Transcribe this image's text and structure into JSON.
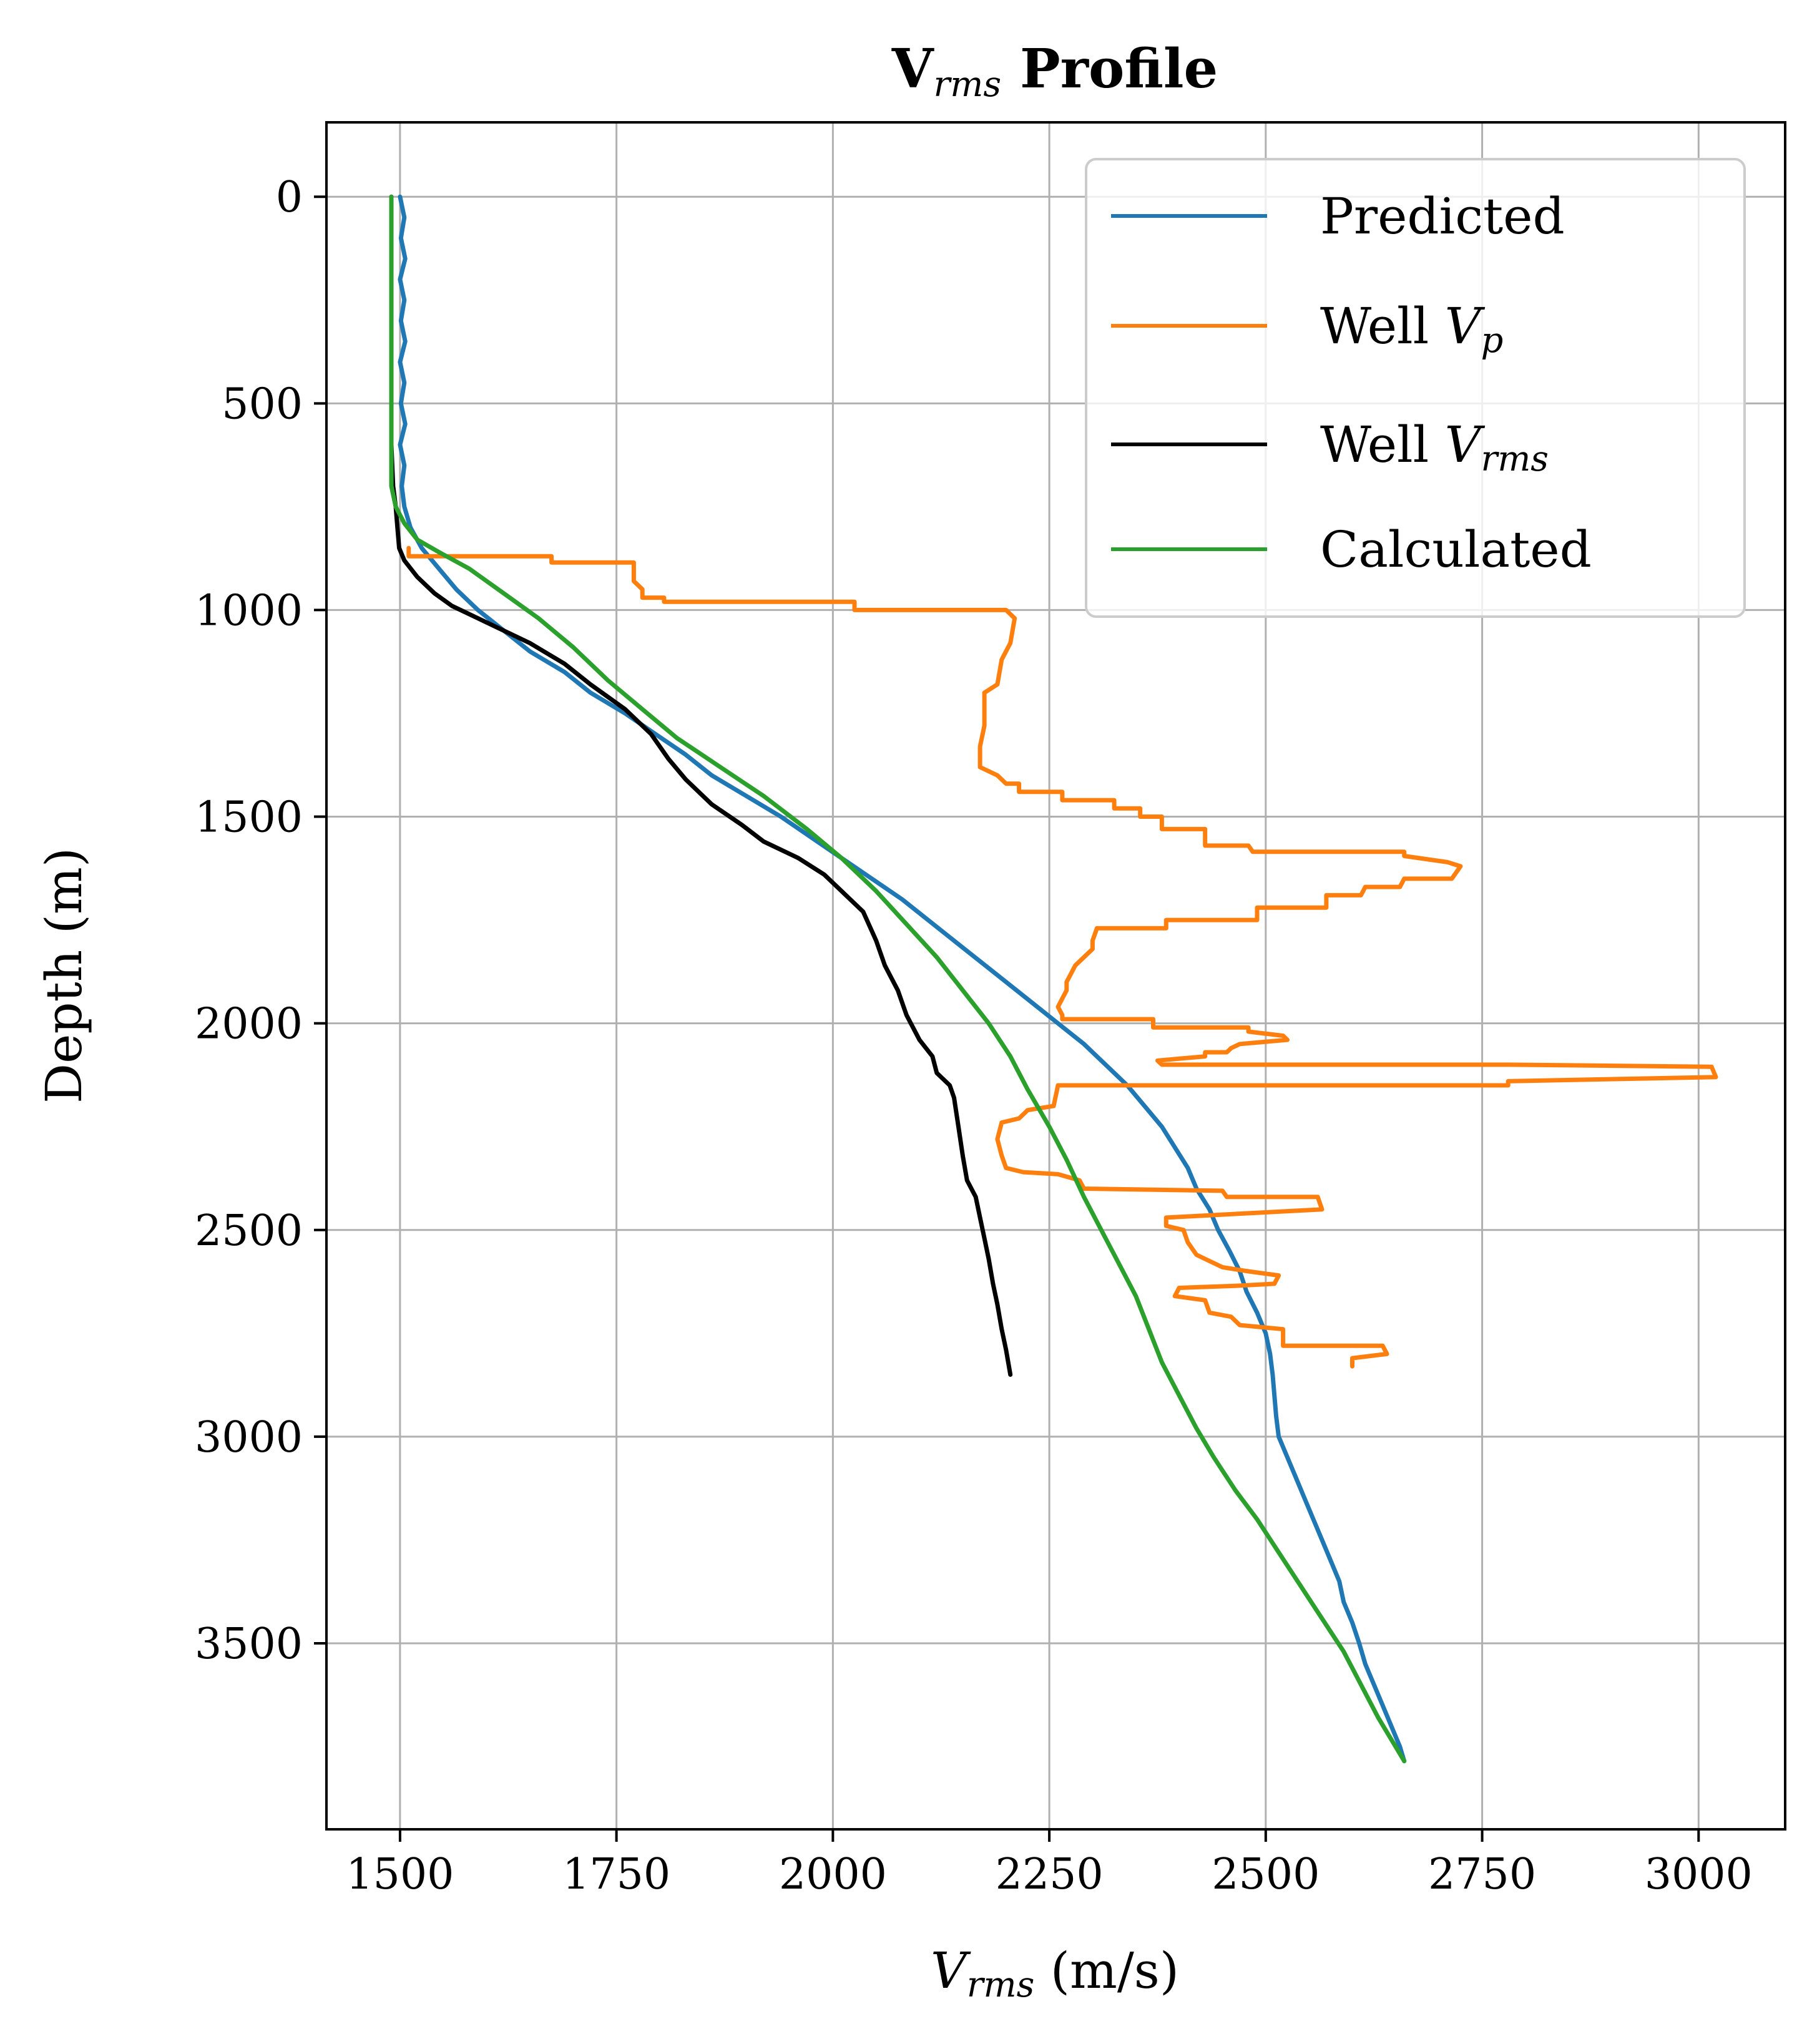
{
  "chart_data": {
    "type": "line",
    "title": {
      "main": "V",
      "sub": "rms",
      "rest": " Profile"
    },
    "xlabel": {
      "main": "V",
      "sub": "rms",
      "rest": " (m/s)"
    },
    "ylabel": "Depth (m)",
    "xlim": [
      1415,
      3100
    ],
    "ylim": [
      3950,
      -180
    ],
    "y_inverted": true,
    "grid": true,
    "legend_position": "top-right",
    "xticks": [
      1500,
      1750,
      2000,
      2250,
      2500,
      2750,
      3000
    ],
    "yticks": [
      0,
      500,
      1000,
      1500,
      2000,
      2500,
      3000,
      3500
    ],
    "series": [
      {
        "name": "Predicted",
        "color": "#1f77b4",
        "points": [
          [
            1500,
            0
          ],
          [
            1505,
            50
          ],
          [
            1501,
            100
          ],
          [
            1506,
            150
          ],
          [
            1500,
            200
          ],
          [
            1505,
            250
          ],
          [
            1501,
            300
          ],
          [
            1506,
            350
          ],
          [
            1500,
            400
          ],
          [
            1505,
            450
          ],
          [
            1501,
            500
          ],
          [
            1506,
            550
          ],
          [
            1500,
            600
          ],
          [
            1505,
            650
          ],
          [
            1502,
            700
          ],
          [
            1505,
            750
          ],
          [
            1512,
            800
          ],
          [
            1525,
            850
          ],
          [
            1545,
            900
          ],
          [
            1565,
            950
          ],
          [
            1590,
            1000
          ],
          [
            1620,
            1050
          ],
          [
            1650,
            1100
          ],
          [
            1690,
            1150
          ],
          [
            1720,
            1200
          ],
          [
            1760,
            1250
          ],
          [
            1795,
            1300
          ],
          [
            1830,
            1350
          ],
          [
            1860,
            1400
          ],
          [
            1900,
            1450
          ],
          [
            1940,
            1500
          ],
          [
            1975,
            1550
          ],
          [
            2010,
            1600
          ],
          [
            2045,
            1650
          ],
          [
            2080,
            1700
          ],
          [
            2110,
            1750
          ],
          [
            2140,
            1800
          ],
          [
            2170,
            1850
          ],
          [
            2200,
            1900
          ],
          [
            2230,
            1950
          ],
          [
            2260,
            2000
          ],
          [
            2290,
            2050
          ],
          [
            2315,
            2100
          ],
          [
            2340,
            2150
          ],
          [
            2360,
            2200
          ],
          [
            2380,
            2250
          ],
          [
            2395,
            2300
          ],
          [
            2410,
            2350
          ],
          [
            2420,
            2400
          ],
          [
            2435,
            2450
          ],
          [
            2445,
            2500
          ],
          [
            2458,
            2550
          ],
          [
            2470,
            2600
          ],
          [
            2478,
            2650
          ],
          [
            2490,
            2700
          ],
          [
            2500,
            2750
          ],
          [
            2505,
            2800
          ],
          [
            2508,
            2850
          ],
          [
            2510,
            2900
          ],
          [
            2512,
            2950
          ],
          [
            2515,
            3000
          ],
          [
            2525,
            3050
          ],
          [
            2535,
            3100
          ],
          [
            2545,
            3150
          ],
          [
            2555,
            3200
          ],
          [
            2565,
            3250
          ],
          [
            2575,
            3300
          ],
          [
            2585,
            3350
          ],
          [
            2590,
            3400
          ],
          [
            2600,
            3450
          ],
          [
            2608,
            3500
          ],
          [
            2615,
            3550
          ],
          [
            2625,
            3600
          ],
          [
            2635,
            3650
          ],
          [
            2645,
            3700
          ],
          [
            2655,
            3750
          ],
          [
            2660,
            3785
          ]
        ]
      },
      {
        "name": "Well Vp",
        "sub": "p",
        "color": "#ff7f0e",
        "points": [
          [
            1510,
            850
          ],
          [
            1510,
            870
          ],
          [
            1675,
            870
          ],
          [
            1675,
            885
          ],
          [
            1770,
            885
          ],
          [
            1770,
            930
          ],
          [
            1780,
            950
          ],
          [
            1780,
            970
          ],
          [
            1805,
            970
          ],
          [
            1805,
            980
          ],
          [
            2025,
            980
          ],
          [
            2025,
            1000
          ],
          [
            2200,
            1000
          ],
          [
            2210,
            1020
          ],
          [
            2205,
            1080
          ],
          [
            2195,
            1120
          ],
          [
            2190,
            1180
          ],
          [
            2175,
            1200
          ],
          [
            2175,
            1280
          ],
          [
            2170,
            1330
          ],
          [
            2170,
            1380
          ],
          [
            2190,
            1400
          ],
          [
            2200,
            1420
          ],
          [
            2215,
            1420
          ],
          [
            2215,
            1440
          ],
          [
            2265,
            1440
          ],
          [
            2265,
            1460
          ],
          [
            2325,
            1460
          ],
          [
            2325,
            1480
          ],
          [
            2355,
            1480
          ],
          [
            2355,
            1500
          ],
          [
            2380,
            1500
          ],
          [
            2380,
            1530
          ],
          [
            2430,
            1530
          ],
          [
            2430,
            1570
          ],
          [
            2480,
            1570
          ],
          [
            2485,
            1585
          ],
          [
            2660,
            1585
          ],
          [
            2660,
            1595
          ],
          [
            2710,
            1610
          ],
          [
            2725,
            1620
          ],
          [
            2715,
            1650
          ],
          [
            2660,
            1650
          ],
          [
            2655,
            1670
          ],
          [
            2615,
            1670
          ],
          [
            2610,
            1690
          ],
          [
            2570,
            1690
          ],
          [
            2570,
            1720
          ],
          [
            2490,
            1720
          ],
          [
            2490,
            1750
          ],
          [
            2385,
            1750
          ],
          [
            2385,
            1770
          ],
          [
            2305,
            1770
          ],
          [
            2300,
            1800
          ],
          [
            2300,
            1820
          ],
          [
            2290,
            1840
          ],
          [
            2280,
            1860
          ],
          [
            2275,
            1880
          ],
          [
            2270,
            1900
          ],
          [
            2270,
            1920
          ],
          [
            2265,
            1940
          ],
          [
            2260,
            1960
          ],
          [
            2265,
            1980
          ],
          [
            2265,
            1990
          ],
          [
            2370,
            1990
          ],
          [
            2370,
            2010
          ],
          [
            2480,
            2010
          ],
          [
            2480,
            2020
          ],
          [
            2520,
            2030
          ],
          [
            2525,
            2040
          ],
          [
            2470,
            2050
          ],
          [
            2460,
            2060
          ],
          [
            2455,
            2070
          ],
          [
            2430,
            2070
          ],
          [
            2430,
            2080
          ],
          [
            2375,
            2090
          ],
          [
            2380,
            2100
          ],
          [
            2780,
            2100
          ],
          [
            3015,
            2105
          ],
          [
            3020,
            2130
          ],
          [
            2780,
            2140
          ],
          [
            2780,
            2150
          ],
          [
            2260,
            2150
          ],
          [
            2255,
            2200
          ],
          [
            2225,
            2210
          ],
          [
            2215,
            2230
          ],
          [
            2195,
            2240
          ],
          [
            2190,
            2280
          ],
          [
            2195,
            2320
          ],
          [
            2200,
            2350
          ],
          [
            2220,
            2360
          ],
          [
            2260,
            2365
          ],
          [
            2285,
            2380
          ],
          [
            2290,
            2400
          ],
          [
            2450,
            2405
          ],
          [
            2455,
            2420
          ],
          [
            2560,
            2420
          ],
          [
            2565,
            2450
          ],
          [
            2475,
            2460
          ],
          [
            2385,
            2470
          ],
          [
            2385,
            2490
          ],
          [
            2405,
            2500
          ],
          [
            2410,
            2530
          ],
          [
            2420,
            2560
          ],
          [
            2430,
            2570
          ],
          [
            2450,
            2590
          ],
          [
            2480,
            2600
          ],
          [
            2515,
            2610
          ],
          [
            2510,
            2630
          ],
          [
            2465,
            2635
          ],
          [
            2400,
            2640
          ],
          [
            2395,
            2660
          ],
          [
            2430,
            2670
          ],
          [
            2435,
            2700
          ],
          [
            2460,
            2710
          ],
          [
            2470,
            2730
          ],
          [
            2520,
            2740
          ],
          [
            2520,
            2780
          ],
          [
            2635,
            2780
          ],
          [
            2640,
            2800
          ],
          [
            2600,
            2810
          ],
          [
            2600,
            2830
          ]
        ]
      },
      {
        "name": "Well Vrms",
        "sub": "rms",
        "color": "#000000",
        "points": [
          [
            1490,
            0
          ],
          [
            1490,
            100
          ],
          [
            1490,
            200
          ],
          [
            1490,
            300
          ],
          [
            1490,
            400
          ],
          [
            1490,
            500
          ],
          [
            1490,
            600
          ],
          [
            1492,
            700
          ],
          [
            1495,
            750
          ],
          [
            1497,
            800
          ],
          [
            1499,
            850
          ],
          [
            1505,
            880
          ],
          [
            1520,
            920
          ],
          [
            1540,
            960
          ],
          [
            1560,
            990
          ],
          [
            1600,
            1030
          ],
          [
            1650,
            1080
          ],
          [
            1690,
            1130
          ],
          [
            1720,
            1180
          ],
          [
            1760,
            1240
          ],
          [
            1790,
            1300
          ],
          [
            1810,
            1360
          ],
          [
            1830,
            1410
          ],
          [
            1860,
            1470
          ],
          [
            1895,
            1520
          ],
          [
            1920,
            1560
          ],
          [
            1960,
            1600
          ],
          [
            1990,
            1640
          ],
          [
            2010,
            1680
          ],
          [
            2035,
            1730
          ],
          [
            2050,
            1800
          ],
          [
            2060,
            1860
          ],
          [
            2075,
            1920
          ],
          [
            2085,
            1980
          ],
          [
            2100,
            2040
          ],
          [
            2115,
            2080
          ],
          [
            2120,
            2120
          ],
          [
            2135,
            2150
          ],
          [
            2140,
            2180
          ],
          [
            2145,
            2250
          ],
          [
            2150,
            2320
          ],
          [
            2155,
            2380
          ],
          [
            2165,
            2420
          ],
          [
            2170,
            2470
          ],
          [
            2175,
            2520
          ],
          [
            2180,
            2570
          ],
          [
            2185,
            2630
          ],
          [
            2190,
            2680
          ],
          [
            2195,
            2740
          ],
          [
            2200,
            2790
          ],
          [
            2205,
            2850
          ]
        ]
      },
      {
        "name": "Calculated",
        "color": "#2ca02c",
        "points": [
          [
            1490,
            0
          ],
          [
            1490,
            100
          ],
          [
            1490,
            200
          ],
          [
            1490,
            300
          ],
          [
            1490,
            400
          ],
          [
            1490,
            500
          ],
          [
            1490,
            600
          ],
          [
            1490,
            700
          ],
          [
            1495,
            750
          ],
          [
            1505,
            790
          ],
          [
            1520,
            830
          ],
          [
            1545,
            860
          ],
          [
            1580,
            900
          ],
          [
            1620,
            960
          ],
          [
            1660,
            1020
          ],
          [
            1700,
            1090
          ],
          [
            1740,
            1170
          ],
          [
            1780,
            1240
          ],
          [
            1820,
            1310
          ],
          [
            1870,
            1380
          ],
          [
            1920,
            1450
          ],
          [
            1970,
            1530
          ],
          [
            2010,
            1600
          ],
          [
            2050,
            1680
          ],
          [
            2085,
            1760
          ],
          [
            2120,
            1840
          ],
          [
            2150,
            1920
          ],
          [
            2180,
            2000
          ],
          [
            2205,
            2080
          ],
          [
            2225,
            2160
          ],
          [
            2250,
            2250
          ],
          [
            2270,
            2330
          ],
          [
            2290,
            2420
          ],
          [
            2310,
            2500
          ],
          [
            2330,
            2580
          ],
          [
            2350,
            2660
          ],
          [
            2365,
            2740
          ],
          [
            2380,
            2820
          ],
          [
            2400,
            2900
          ],
          [
            2420,
            2980
          ],
          [
            2440,
            3050
          ],
          [
            2465,
            3130
          ],
          [
            2490,
            3200
          ],
          [
            2515,
            3280
          ],
          [
            2540,
            3360
          ],
          [
            2565,
            3440
          ],
          [
            2590,
            3520
          ],
          [
            2610,
            3600
          ],
          [
            2630,
            3680
          ],
          [
            2650,
            3750
          ],
          [
            2660,
            3785
          ]
        ]
      }
    ]
  }
}
